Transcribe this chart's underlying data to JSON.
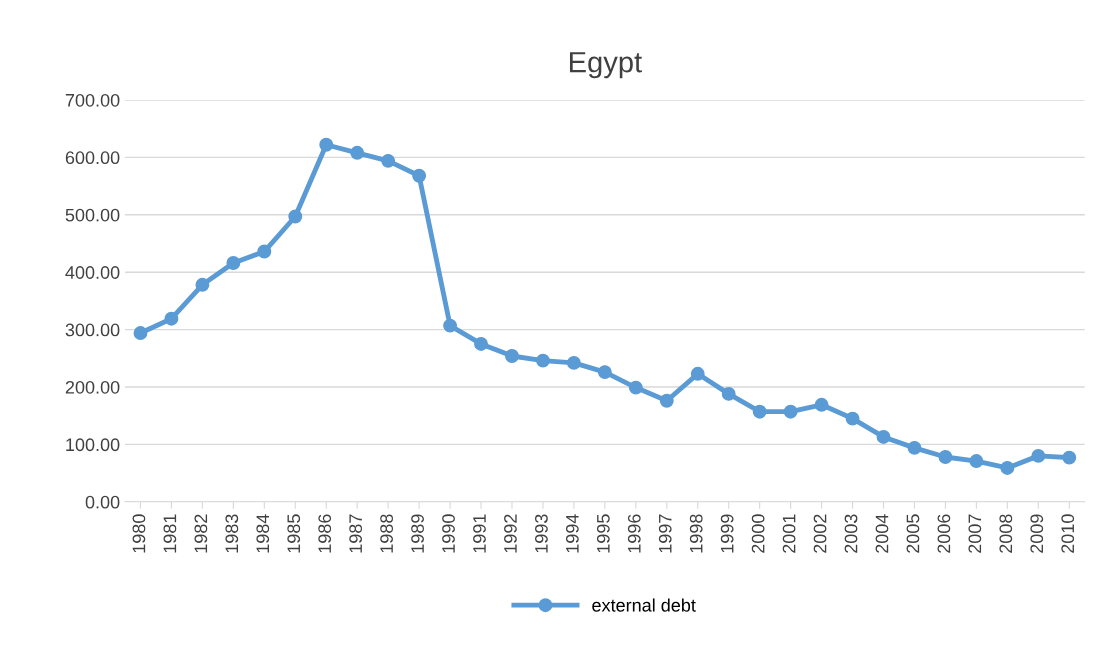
{
  "chart_data": {
    "type": "line",
    "title": "Egypt",
    "categories": [
      "1980",
      "1981",
      "1982",
      "1983",
      "1984",
      "1985",
      "1986",
      "1987",
      "1988",
      "1989",
      "1990",
      "1991",
      "1992",
      "1993",
      "1994",
      "1995",
      "1996",
      "1997",
      "1998",
      "1999",
      "2000",
      "2001",
      "2002",
      "2003",
      "2004",
      "2005",
      "2006",
      "2007",
      "2008",
      "2009",
      "2010"
    ],
    "series": [
      {
        "name": "external debt",
        "color": "#5b9bd5",
        "values": [
          294,
          319,
          378,
          416,
          436,
          497,
          622,
          608,
          594,
          568,
          307,
          275,
          254,
          246,
          242,
          226,
          199,
          176,
          223,
          188,
          157,
          157,
          169,
          145,
          113,
          94,
          78,
          71,
          59,
          80,
          77
        ]
      }
    ],
    "ylim": [
      0,
      700
    ],
    "yticks": [
      {
        "value": 0,
        "label": "0.00"
      },
      {
        "value": 100,
        "label": "100.00"
      },
      {
        "value": 200,
        "label": "200.00"
      },
      {
        "value": 300,
        "label": "300.00"
      },
      {
        "value": 400,
        "label": "400.00"
      },
      {
        "value": 500,
        "label": "500.00"
      },
      {
        "value": 600,
        "label": "600.00"
      },
      {
        "value": 700,
        "label": "700.00"
      }
    ],
    "grid": "y",
    "legend": "bottom",
    "marker": "circle",
    "line_style": "solid"
  }
}
